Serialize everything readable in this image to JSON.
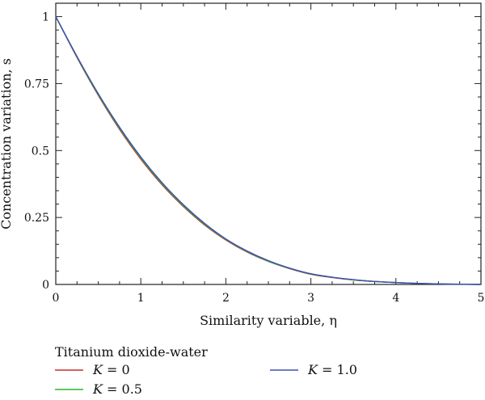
{
  "chart_data": {
    "type": "line",
    "xlabel": "Similarity variable, η",
    "ylabel": "Concentration variation, s",
    "xlim": [
      0,
      5
    ],
    "ylim": [
      0,
      1.05
    ],
    "x_ticks": [
      0,
      1,
      2,
      3,
      4,
      5
    ],
    "x_tick_labels": [
      "0",
      "1",
      "2",
      "3",
      "4",
      "5"
    ],
    "y_ticks": [
      0,
      0.25,
      0.5,
      0.75,
      1
    ],
    "y_tick_labels": [
      "0",
      "0.25",
      "0.5",
      "0.75",
      "1"
    ],
    "grid": false,
    "legend": {
      "title": "Titanium dioxide-water",
      "placement": "bottom",
      "entries": [
        {
          "prefix": "K",
          "suffix": " = 0",
          "color": "#cc2a2a"
        },
        {
          "prefix": "K",
          "suffix": " = 0.5",
          "color": "#2ab52a"
        },
        {
          "prefix": "K",
          "suffix": " = 1.0",
          "color": "#3b4fb8"
        }
      ]
    },
    "x": [
      0,
      0.25,
      0.5,
      0.75,
      1.0,
      1.25,
      1.5,
      1.75,
      2.0,
      2.25,
      2.5,
      2.75,
      3.0,
      3.25,
      3.5,
      3.75,
      4.0,
      4.25,
      4.5,
      4.75,
      5.0
    ],
    "series": [
      {
        "name": "K = 0",
        "color": "#cc2a2a",
        "values": [
          1.0,
          0.847,
          0.706,
          0.579,
          0.468,
          0.372,
          0.291,
          0.222,
          0.166,
          0.121,
          0.086,
          0.059,
          0.038,
          0.026,
          0.017,
          0.011,
          0.007,
          0.004,
          0.002,
          0.001,
          0.0
        ]
      },
      {
        "name": "K = 0.5",
        "color": "#2ab52a",
        "values": [
          1.0,
          0.849,
          0.709,
          0.583,
          0.472,
          0.376,
          0.294,
          0.225,
          0.168,
          0.123,
          0.087,
          0.06,
          0.039,
          0.027,
          0.017,
          0.011,
          0.007,
          0.004,
          0.002,
          0.001,
          0.0
        ]
      },
      {
        "name": "K = 1.0",
        "color": "#3b4fb8",
        "values": [
          1.0,
          0.851,
          0.712,
          0.587,
          0.476,
          0.38,
          0.298,
          0.228,
          0.17,
          0.125,
          0.089,
          0.061,
          0.04,
          0.027,
          0.018,
          0.011,
          0.007,
          0.004,
          0.002,
          0.001,
          0.0
        ]
      }
    ]
  }
}
